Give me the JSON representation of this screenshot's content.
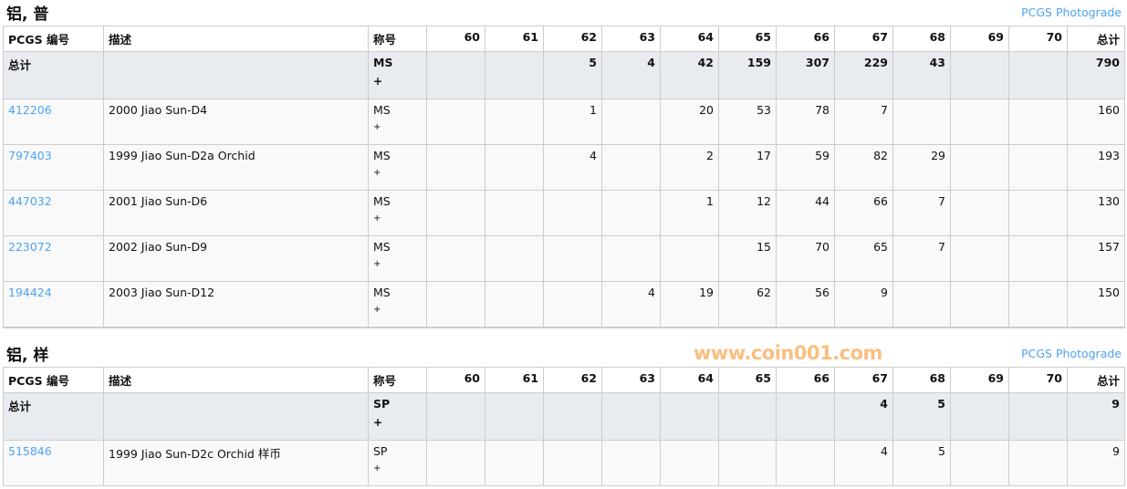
{
  "columns": {
    "id": "PCGS 编号",
    "desc": "描述",
    "designation": "称号",
    "grades": [
      "60",
      "61",
      "62",
      "63",
      "64",
      "65",
      "66",
      "67",
      "68",
      "69",
      "70"
    ],
    "total": "总计"
  },
  "sections": [
    {
      "title": "铝, 普",
      "link": "PCGS Photograde",
      "total": {
        "label": "总计",
        "designation": "MS",
        "plus": "+",
        "grades": [
          "",
          "",
          "5",
          "4",
          "42",
          "159",
          "307",
          "229",
          "43",
          "",
          ""
        ],
        "total": "790"
      },
      "rows": [
        {
          "id": "412206",
          "desc": "2000 Jiao Sun-D4",
          "designation": "MS",
          "plus": "+",
          "grades": [
            "",
            "",
            "1",
            "",
            "20",
            "53",
            "78",
            "7",
            "",
            "",
            ""
          ],
          "total": "160"
        },
        {
          "id": "797403",
          "desc": "1999 Jiao Sun-D2a Orchid",
          "designation": "MS",
          "plus": "+",
          "grades": [
            "",
            "",
            "4",
            "",
            "2",
            "17",
            "59",
            "82",
            "29",
            "",
            ""
          ],
          "total": "193"
        },
        {
          "id": "447032",
          "desc": "2001 Jiao Sun-D6",
          "designation": "MS",
          "plus": "+",
          "grades": [
            "",
            "",
            "",
            "",
            "1",
            "12",
            "44",
            "66",
            "7",
            "",
            ""
          ],
          "total": "130"
        },
        {
          "id": "223072",
          "desc": "2002 Jiao Sun-D9",
          "designation": "MS",
          "plus": "+",
          "grades": [
            "",
            "",
            "",
            "",
            "",
            "15",
            "70",
            "65",
            "7",
            "",
            ""
          ],
          "total": "157"
        },
        {
          "id": "194424",
          "desc": "2003 Jiao Sun-D12",
          "designation": "MS",
          "plus": "+",
          "grades": [
            "",
            "",
            "",
            "4",
            "19",
            "62",
            "56",
            "9",
            "",
            "",
            ""
          ],
          "total": "150"
        }
      ]
    },
    {
      "title": "铝, 样",
      "link": "PCGS Photograde",
      "total": {
        "label": "总计",
        "designation": "SP",
        "plus": "+",
        "grades": [
          "",
          "",
          "",
          "",
          "",
          "",
          "",
          "4",
          "5",
          "",
          ""
        ],
        "total": "9"
      },
      "rows": [
        {
          "id": "515846",
          "desc": "1999 Jiao Sun-D2c Orchid 样币",
          "designation": "SP",
          "plus": "+",
          "grades": [
            "",
            "",
            "",
            "",
            "",
            "",
            "",
            "4",
            "5",
            "",
            ""
          ],
          "total": "9"
        }
      ]
    }
  ],
  "watermark": "www.coin001.com"
}
